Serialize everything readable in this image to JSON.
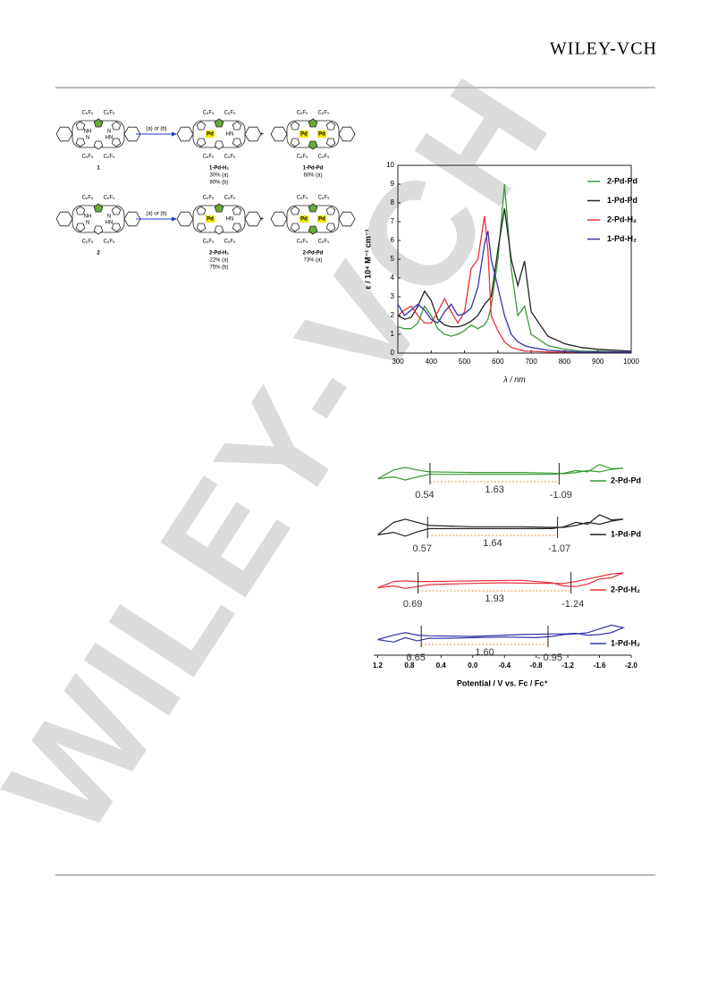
{
  "header": {
    "brand": "WILEY-VCH"
  },
  "watermark": "WILEY-VCH",
  "scheme": {
    "substituent": "C₆F₅",
    "conditions": "(a) or (b)",
    "plus": "+",
    "atoms": {
      "nh": "NH",
      "n": "N",
      "hn": "HN",
      "pd": "Pd"
    },
    "rows": [
      {
        "start": "1",
        "products": [
          {
            "label": "1-Pd-H₂",
            "yields": [
              "30% (a)",
              "80% (b)"
            ]
          },
          {
            "label": "1-Pd-Pd",
            "yields": [
              "60% (a)"
            ]
          }
        ]
      },
      {
        "start": "2",
        "products": [
          {
            "label": "2-Pd-H₂",
            "yields": [
              "22% (a)",
              "75% (b)"
            ]
          },
          {
            "label": "2-Pd-Pd",
            "yields": [
              "73% (a)"
            ]
          }
        ]
      }
    ]
  },
  "chart_data": [
    {
      "type": "line",
      "x_label": "λ / nm",
      "y_label": "ε / 10⁴ M⁻¹ cm⁻¹",
      "x": [
        300,
        320,
        340,
        360,
        380,
        400,
        420,
        440,
        460,
        480,
        500,
        520,
        540,
        560,
        570,
        580,
        600,
        620,
        640,
        660,
        680,
        700,
        750,
        800,
        850,
        900,
        1000
      ],
      "xlim": [
        300,
        1000
      ],
      "xticks": [
        300,
        400,
        500,
        600,
        700,
        800,
        900,
        1000
      ],
      "ylim": [
        0,
        10
      ],
      "yticks": [
        0,
        1,
        2,
        3,
        4,
        5,
        6,
        7,
        8,
        9,
        10
      ],
      "legend": "top-right",
      "series": [
        {
          "name": "2-Pd-Pd",
          "color": "#3a9a3a",
          "values": [
            1.4,
            1.3,
            1.3,
            1.6,
            2.5,
            2.0,
            1.3,
            1.0,
            0.9,
            1.0,
            1.2,
            1.5,
            1.3,
            1.5,
            1.8,
            2.5,
            5.0,
            9.0,
            4.5,
            2.0,
            2.5,
            1.0,
            0.4,
            0.2,
            0.1,
            0.1,
            0.05
          ]
        },
        {
          "name": "1-Pd-Pd",
          "color": "#222222",
          "values": [
            2.0,
            1.8,
            1.9,
            2.5,
            3.3,
            2.8,
            1.8,
            1.5,
            1.4,
            1.4,
            1.5,
            1.7,
            2.0,
            2.6,
            2.8,
            3.0,
            5.5,
            7.7,
            5.0,
            3.6,
            4.9,
            2.2,
            0.9,
            0.5,
            0.3,
            0.2,
            0.1
          ]
        },
        {
          "name": "2-Pd-H₂",
          "color": "#e8303a",
          "values": [
            2.0,
            2.3,
            2.5,
            2.0,
            1.6,
            1.6,
            2.2,
            2.9,
            2.2,
            1.6,
            2.2,
            4.5,
            5.0,
            7.3,
            5.5,
            2.0,
            1.2,
            0.6,
            0.3,
            0.2,
            0.1,
            0.1,
            0.05,
            0.05,
            0.05,
            0.05,
            0.05
          ]
        },
        {
          "name": "1-Pd-H₂",
          "color": "#3333aa",
          "values": [
            2.6,
            2.0,
            2.3,
            2.6,
            2.3,
            1.8,
            1.6,
            2.2,
            2.6,
            2.0,
            2.1,
            2.4,
            3.5,
            5.8,
            6.5,
            5.0,
            3.5,
            2.0,
            1.0,
            0.6,
            0.4,
            0.3,
            0.15,
            0.1,
            0.05,
            0.05,
            0.05
          ]
        }
      ]
    },
    {
      "type": "cyclic_voltammogram",
      "x_label": "Potential / V vs. Fc / Fc⁺",
      "xlim": [
        1.25,
        -2.0
      ],
      "xticks": [
        1.2,
        0.8,
        0.4,
        {
          "value": 0,
          "label": "0.0"
        },
        -0.4,
        -0.8,
        -1.2,
        -1.6,
        {
          "value": -2,
          "label": "-2.0"
        }
      ],
      "x": [
        1.2,
        1.0,
        0.85,
        0.7,
        0.55,
        0.3,
        0.0,
        -0.4,
        -0.8,
        -1.0,
        -1.15,
        -1.3,
        -1.45,
        -1.6,
        -1.75,
        -1.9,
        -1.75,
        -1.6,
        -1.45,
        -1.3,
        -1.15,
        -1.0,
        -0.6,
        0.0,
        0.55,
        0.7,
        0.85,
        1.0,
        1.2
      ],
      "series": [
        {
          "name": "2-Pd-Pd",
          "color": "#3a9a3a",
          "onset_ox": 0.54,
          "onset_red": -1.09,
          "gap": 1.63,
          "values": [
            -0.8,
            -0.5,
            -1.0,
            -0.5,
            -0.1,
            -0.1,
            -0.1,
            -0.1,
            -0.1,
            -0.1,
            0.1,
            0.5,
            0.3,
            1.5,
            0.8,
            0.9,
            0.7,
            0.3,
            0.5,
            0.2,
            0,
            0.1,
            0.2,
            0.2,
            0.3,
            0.6,
            1.0,
            0.6,
            -0.8
          ]
        },
        {
          "name": "1-Pd-Pd",
          "color": "#222222",
          "onset_ox": 0.57,
          "onset_red": -1.07,
          "gap": 1.64,
          "values": [
            -1.2,
            -0.8,
            -1.4,
            -0.7,
            -0.2,
            -0.2,
            -0.2,
            -0.2,
            -0.2,
            -0.2,
            0.1,
            0.8,
            0.5,
            2.0,
            1.2,
            1.3,
            1.0,
            0.5,
            0.8,
            0.3,
            0,
            0,
            0.1,
            0.1,
            0.3,
            0.8,
            1.3,
            0.8,
            -1.2
          ]
        },
        {
          "name": "2-Pd-H₂",
          "color": "#e8303a",
          "onset_ox": 0.69,
          "onset_red": -1.24,
          "gap": 1.93,
          "values": [
            -0.8,
            -0.5,
            -0.9,
            -0.6,
            -0.3,
            -0.2,
            -0.1,
            0,
            -0.1,
            -0.1,
            -0.1,
            0.2,
            0.6,
            1.0,
            1.4,
            1.6,
            0.8,
            0.6,
            -0.2,
            -0.6,
            -0.5,
            0,
            0.4,
            0.3,
            0.2,
            0.2,
            0.3,
            0.2,
            -0.8
          ]
        },
        {
          "name": "1-Pd-H₂",
          "color": "#3333aa",
          "onset_ox": 0.65,
          "onset_red": {
            "value": -0.95,
            "label": "- 0.95"
          },
          "gap": {
            "value": 1.6,
            "label": "1.60"
          },
          "values": [
            -0.5,
            -0.9,
            -0.2,
            -0.7,
            -0.3,
            -0.3,
            -0.2,
            -0.1,
            -0.2,
            0,
            0.3,
            0.4,
            0.6,
            1.2,
            1.8,
            1.4,
            0.6,
            0.3,
            0.2,
            0.5,
            0.4,
            0.4,
            0.3,
            0,
            0.1,
            0.2,
            0.6,
            0.2,
            -0.5
          ]
        }
      ]
    }
  ]
}
